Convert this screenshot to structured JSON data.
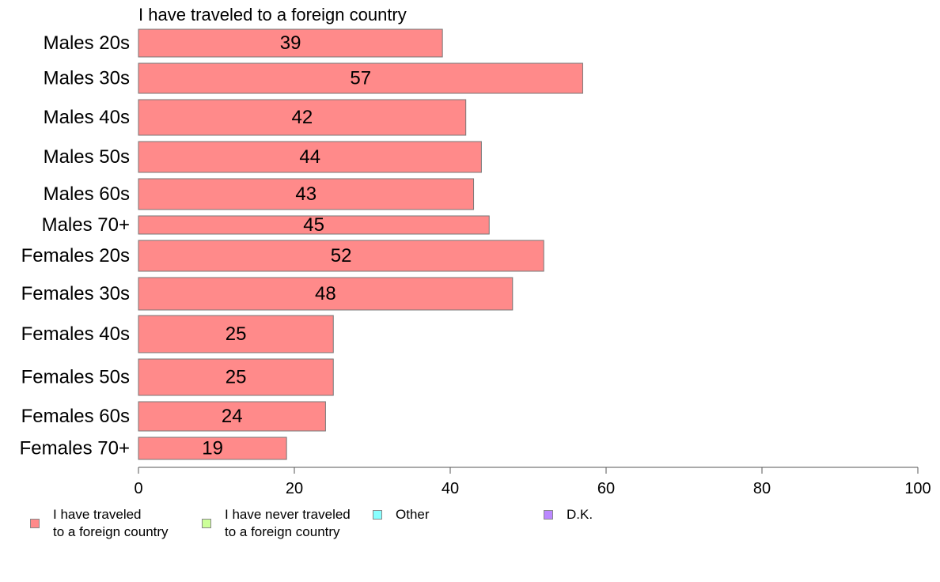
{
  "chart_data": {
    "type": "bar",
    "orientation": "horizontal",
    "title": "I have traveled to a foreign country",
    "categories": [
      "Males 20s",
      "Males 30s",
      "Males 40s",
      "Males 50s",
      "Males 60s",
      "Males 70+",
      "Females 20s",
      "Females 30s",
      "Females 40s",
      "Females 50s",
      "Females 60s",
      "Females 70+"
    ],
    "values": [
      39,
      57,
      42,
      44,
      43,
      45,
      52,
      48,
      25,
      25,
      24,
      19
    ],
    "xlim": [
      0,
      100
    ],
    "xticks": [
      0,
      20,
      40,
      60,
      80,
      100
    ],
    "bar_color": "#ff8a8a",
    "grid": false,
    "legend": {
      "placement": "bottom",
      "items": [
        {
          "label": "I have traveled\nto a foreign country",
          "color": "#ff8a8a"
        },
        {
          "label": "I have never traveled\nto a foreign country",
          "color": "#ccff99"
        },
        {
          "label": "Other",
          "color": "#88ffff"
        },
        {
          "label": "D.K.",
          "color": "#bb88ff"
        }
      ]
    }
  }
}
